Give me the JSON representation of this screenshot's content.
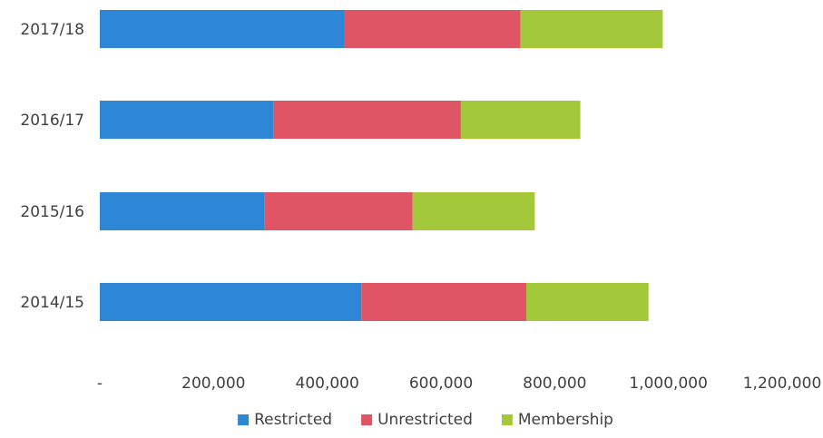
{
  "chart_data": {
    "type": "bar",
    "orientation": "horizontal",
    "stacked": true,
    "categories": [
      "2017/18",
      "2016/17",
      "2015/16",
      "2014/15"
    ],
    "series": [
      {
        "name": "Restricted",
        "color": "#2e86d6",
        "values": [
          430000,
          305000,
          290000,
          460000
        ]
      },
      {
        "name": "Unrestricted",
        "color": "#e05565",
        "values": [
          310000,
          330000,
          260000,
          290000
        ]
      },
      {
        "name": "Membership",
        "color": "#a3c93a",
        "values": [
          250000,
          210000,
          215000,
          215000
        ]
      }
    ],
    "x_ticks": [
      "-",
      "200,000",
      "400,000",
      "600,000",
      "800,000",
      "1,000,000",
      "1,200,000"
    ],
    "xlim": [
      0,
      1200000
    ],
    "grid": false,
    "legend_position": "bottom"
  }
}
